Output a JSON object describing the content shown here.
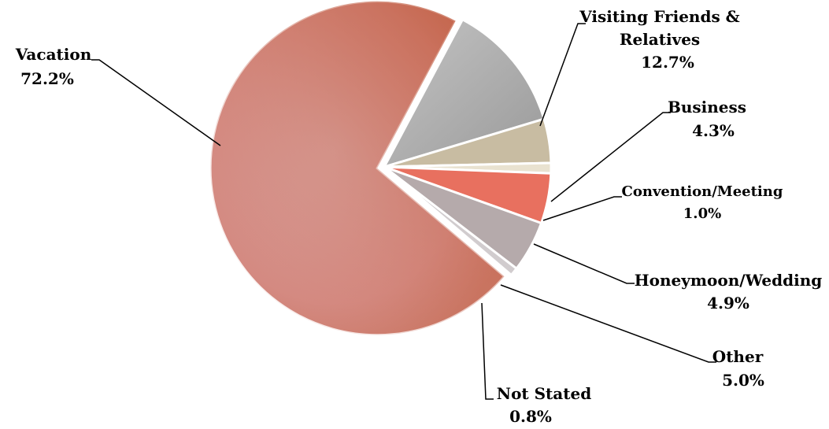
{
  "chart_data": {
    "type": "pie",
    "slices": [
      {
        "label": "Vacation",
        "value": 72.2,
        "value_label": "72.2%",
        "color": "#d98880",
        "exploded": true
      },
      {
        "label": "Visiting Friends & Relatives",
        "value": 12.7,
        "value_label": "12.7%",
        "color": "#a9a9a9"
      },
      {
        "label": "Business",
        "value": 4.3,
        "value_label": "4.3%",
        "color": "#c8bca2"
      },
      {
        "label": "Convention/Meeting",
        "value": 1.0,
        "value_label": "1.0%",
        "color": "#e9e2d0"
      },
      {
        "label": "Honeymoon/Wedding",
        "value": 4.9,
        "value_label": "4.9%",
        "color": "#e8705f"
      },
      {
        "label": "Other",
        "value": 5.0,
        "value_label": "5.0%",
        "color": "#b5aaab"
      },
      {
        "label": "Not Stated",
        "value": 0.8,
        "value_label": "0.8%",
        "color": "#d1ccce"
      }
    ]
  }
}
